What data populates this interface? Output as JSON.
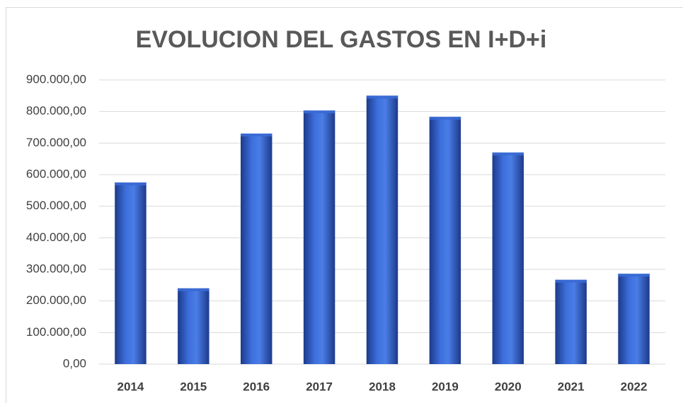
{
  "chart_data": {
    "type": "bar",
    "title": "EVOLUCION DEL GASTOS EN I+D+i",
    "categories": [
      "2014",
      "2015",
      "2016",
      "2017",
      "2018",
      "2019",
      "2020",
      "2021",
      "2022"
    ],
    "values": [
      575000,
      240000,
      730000,
      803000,
      850000,
      783000,
      670000,
      267000,
      286000
    ],
    "color": "#3a6ad4",
    "ylim": [
      0,
      900000
    ],
    "yticks": [
      {
        "value": 0,
        "label": "0,00"
      },
      {
        "value": 100000,
        "label": "100.000,00"
      },
      {
        "value": 200000,
        "label": "200.000,00"
      },
      {
        "value": 300000,
        "label": "300.000,00"
      },
      {
        "value": 400000,
        "label": "400.000,00"
      },
      {
        "value": 500000,
        "label": "500.000,00"
      },
      {
        "value": 600000,
        "label": "600.000,00"
      },
      {
        "value": 700000,
        "label": "700.000,00"
      },
      {
        "value": 800000,
        "label": "800.000,00"
      },
      {
        "value": 900000,
        "label": "900.000,00"
      }
    ],
    "grid": true
  }
}
